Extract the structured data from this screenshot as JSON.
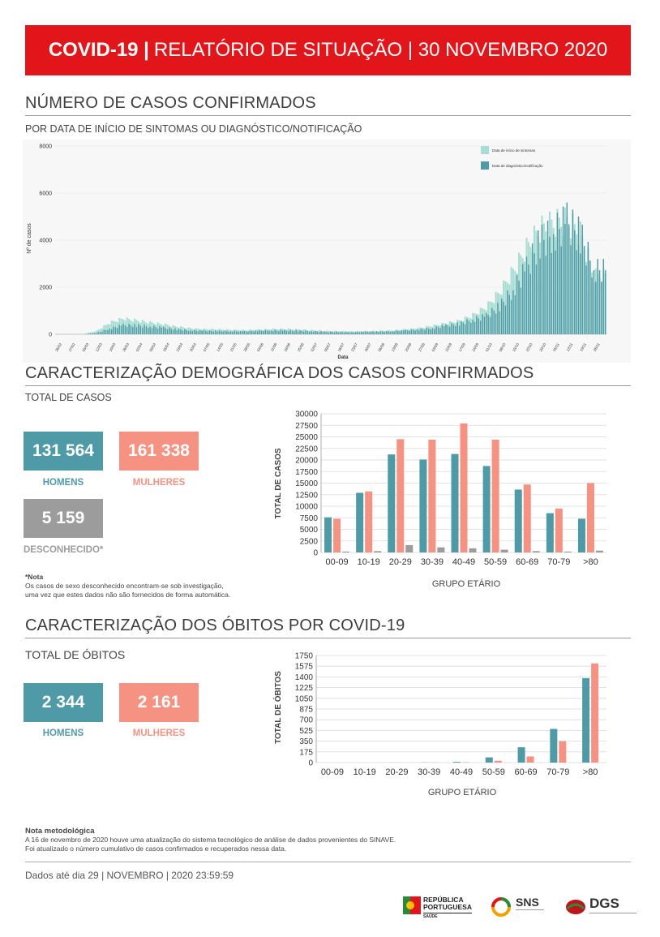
{
  "header": {
    "bold": "COVID-19 |",
    "rest": "RELATÓRIO DE SITUAÇÃO | 30 NOVEMBRO 2020"
  },
  "cases_section": {
    "title": "NÚMERO DE CASOS CONFIRMADOS",
    "subtitle": "POR DATA DE INÍCIO DE SINTOMAS OU DIAGNÓSTICO/NOTIFICAÇÃO"
  },
  "demographic_section": {
    "title": "CARACTERIZAÇÃO DEMOGRÁFICA DOS CASOS CONFIRMADOS",
    "total_label": "TOTAL DE CASOS",
    "men_value": "131 564",
    "men_label": "HOMENS",
    "women_value": "161 338",
    "women_label": "MULHERES",
    "unknown_value": "5 159",
    "unknown_label": "DESCONHECIDO*",
    "note_title": "*Nota",
    "note_line1": "Os casos de sexo desconhecido encontram-se sob investigação,",
    "note_line2": "uma vez que estes dados não são fornecidos de forma automática."
  },
  "deaths_section": {
    "title": "CARACTERIZAÇÃO DOS ÓBITOS POR COVID-19",
    "total_label": "TOTAL DE ÓBITOS",
    "men_value": "2 344",
    "men_label": "HOMENS",
    "women_value": "2 161",
    "women_label": "MULHERES"
  },
  "method_note": {
    "title": "Nota metodológica",
    "line1": "A 16 de novembro de 2020 houve uma atualização do sistema tecnológico de análise de dados provenientes do SINAVE.",
    "line2": "Foi atualizado o número cumulativo de casos confirmados e recuperados nessa data."
  },
  "footer": {
    "data_until": "Dados até dia 29 | NOVEMBRO | 2020 23:59:59",
    "logo1_line1": "REPÚBLICA",
    "logo1_line2": "PORTUGUESA",
    "logo1_line3": "SAÚDE",
    "logo2_text": "SNS",
    "logo3_text": "DGS"
  },
  "colors": {
    "red": "#e2161a",
    "teal": "#4e9aa6",
    "light_teal": "#a8ddd3",
    "salmon": "#f59282",
    "grey": "#9c9c9c"
  },
  "chart_data": [
    {
      "type": "bar",
      "ylabel": "Nº de casos",
      "xlabel": "Data",
      "ylim": [
        0,
        8000
      ],
      "yticks": [
        0,
        2000,
        4000,
        6000,
        8000
      ],
      "x_tick_labels": [
        "26/02",
        "27/02",
        "05/03",
        "12/03",
        "19/03",
        "26/03",
        "02/04",
        "09/04",
        "16/04",
        "23/04",
        "30/04",
        "07/05",
        "14/05",
        "21/05",
        "28/05",
        "04/06",
        "11/06",
        "18/06",
        "25/06",
        "02/07",
        "09/07",
        "16/07",
        "23/07",
        "30/07",
        "06/08",
        "13/08",
        "20/08",
        "27/08",
        "03/09",
        "10/09",
        "17/09",
        "24/09",
        "01/10",
        "08/10",
        "15/10",
        "22/10",
        "29/10",
        "05/11",
        "12/11",
        "19/11",
        "26/11"
      ],
      "legend": [
        "Data de início de sintomas",
        "Data de diagnóstico/notificação"
      ],
      "legend_position": "top-right",
      "series": [
        {
          "name": "Data de início de sintomas",
          "values": [
            0,
            0,
            5,
            150,
            550,
            750,
            650,
            560,
            470,
            360,
            280,
            240,
            230,
            210,
            190,
            210,
            240,
            250,
            230,
            190,
            160,
            150,
            140,
            150,
            160,
            180,
            230,
            290,
            390,
            520,
            640,
            900,
            1300,
            2000,
            3000,
            4100,
            5000,
            5300,
            5400,
            4800,
            2800
          ]
        },
        {
          "name": "Data de diagnóstico/notificação",
          "values": [
            0,
            0,
            0,
            60,
            280,
            450,
            430,
            380,
            320,
            240,
            190,
            170,
            160,
            150,
            140,
            170,
            190,
            180,
            170,
            150,
            120,
            110,
            100,
            120,
            130,
            150,
            190,
            230,
            300,
            420,
            520,
            720,
            900,
            1400,
            2200,
            3300,
            4600,
            5000,
            5600,
            4900,
            3200
          ]
        }
      ]
    },
    {
      "type": "bar",
      "ylabel": "TOTAL DE CASOS",
      "xlabel": "GRUPO ETÁRIO",
      "ylim": [
        0,
        30000
      ],
      "yticks": [
        0,
        2500,
        5000,
        7500,
        10000,
        12500,
        15000,
        17500,
        20000,
        22500,
        25000,
        27500,
        30000
      ],
      "categories": [
        "00-09",
        "10-19",
        "20-29",
        "30-39",
        "40-49",
        "50-59",
        "60-69",
        "70-79",
        ">80"
      ],
      "series": [
        {
          "color": "teal",
          "values": [
            7600,
            12900,
            21200,
            20100,
            21300,
            18700,
            13600,
            8500,
            7300
          ]
        },
        {
          "color": "salmon",
          "values": [
            7300,
            13200,
            24500,
            24400,
            27900,
            24400,
            14700,
            9500,
            15000
          ]
        },
        {
          "color": "grey",
          "values": [
            200,
            300,
            1600,
            1100,
            900,
            600,
            300,
            200,
            400
          ]
        }
      ]
    },
    {
      "type": "bar",
      "ylabel": "TOTAL DE ÓBITOS",
      "xlabel": "GRUPO ETÁRIO",
      "ylim": [
        0,
        1750
      ],
      "yticks": [
        0,
        175,
        350,
        525,
        700,
        875,
        1050,
        1225,
        1400,
        1575,
        1750
      ],
      "categories": [
        "00-09",
        "10-19",
        "20-29",
        "30-39",
        "40-49",
        "50-59",
        "60-69",
        "70-79",
        ">80"
      ],
      "series": [
        {
          "color": "teal",
          "values": [
            0,
            0,
            1,
            3,
            12,
            85,
            250,
            550,
            1380
          ]
        },
        {
          "color": "salmon",
          "values": [
            0,
            0,
            1,
            2,
            6,
            30,
            100,
            350,
            1620
          ]
        }
      ]
    }
  ]
}
